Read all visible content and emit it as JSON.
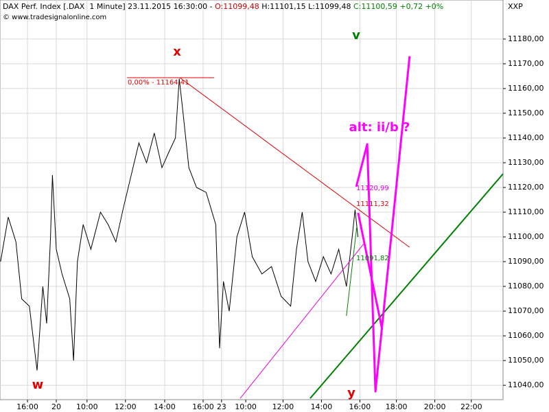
{
  "chart_data": {
    "type": "line",
    "title": "DAX Perf. Index [.DAX  1 Minute] 23.11.2015 16:30:00 -",
    "ohlc": [
      "O:11099,48",
      "H:11101,15",
      "L:11099,48"
    ],
    "change": [
      "C:11100,59",
      "+0,72",
      "+0%"
    ],
    "watermark": "© www.tradesignalonline.com",
    "y_axis_label": "XXP",
    "xlim": [
      -1.43,
      24.75
    ],
    "ylim": [
      11034.2,
      11195.8
    ],
    "grid": true,
    "xticks": [
      {
        "value": 0,
        "label": "16:00"
      },
      {
        "value": 1.5,
        "label": "20"
      },
      {
        "value": 3.1,
        "label": "10:00"
      },
      {
        "value": 5.1,
        "label": "12:00"
      },
      {
        "value": 7.14,
        "label": "14:00"
      },
      {
        "value": 9.14,
        "label": "16:00"
      },
      {
        "value": 10.1,
        "label": "23"
      },
      {
        "value": 11.36,
        "label": "10:00"
      },
      {
        "value": 13.3,
        "label": "12:00"
      },
      {
        "value": 15.3,
        "label": "14:00"
      },
      {
        "value": 17.3,
        "label": "16:00"
      },
      {
        "value": 19.2,
        "label": "18:00"
      },
      {
        "value": 21.2,
        "label": "20:00"
      },
      {
        "value": 23.1,
        "label": "22:00"
      }
    ],
    "yticks": [
      {
        "value": 11040,
        "label": "11040,00"
      },
      {
        "value": 11050,
        "label": "11050,00"
      },
      {
        "value": 11060,
        "label": "11060,00"
      },
      {
        "value": 11070,
        "label": "11070,00"
      },
      {
        "value": 11080,
        "label": "11080,00"
      },
      {
        "value": 11090,
        "label": "11090,00"
      },
      {
        "value": 11100,
        "label": "11100,00"
      },
      {
        "value": 11110,
        "label": "11110,00"
      },
      {
        "value": 11120,
        "label": "11120,00"
      },
      {
        "value": 11130,
        "label": "11130,00"
      },
      {
        "value": 11140,
        "label": "11140,00"
      },
      {
        "value": 11150,
        "label": "11150,00"
      },
      {
        "value": 11160,
        "label": "11160,00"
      },
      {
        "value": 11170,
        "label": "11170,00"
      },
      {
        "value": 11180,
        "label": "11180,00"
      }
    ],
    "series": [
      {
        "name": "DAX Perf. Index",
        "color": "#000000",
        "x": [
          -1.4,
          -1.0,
          -0.6,
          -0.3,
          0.1,
          0.5,
          0.8,
          1.0,
          1.2,
          1.3,
          1.5,
          1.8,
          2.2,
          2.4,
          2.6,
          2.9,
          3.3,
          3.8,
          4.2,
          4.6,
          5.0,
          5.4,
          5.8,
          6.2,
          6.6,
          7.0,
          7.4,
          7.7,
          7.9,
          8.1,
          8.4,
          8.8,
          9.3,
          9.8,
          10.0,
          10.2,
          10.5,
          10.9,
          11.3,
          11.7,
          12.2,
          12.7,
          13.2,
          13.7,
          14.0,
          14.3,
          14.6,
          15.0,
          15.4,
          15.8,
          16.2,
          16.6,
          16.9,
          17.05,
          17.2
        ],
        "values": [
          11090,
          11108,
          11098,
          11075,
          11072,
          11046,
          11080,
          11065,
          11100,
          11125,
          11095,
          11085,
          11075,
          11050,
          11090,
          11105,
          11095,
          11110,
          11105,
          11098,
          11112,
          11125,
          11138,
          11130,
          11142,
          11128,
          11135,
          11140,
          11164,
          11150,
          11128,
          11120,
          11118,
          11105,
          11055,
          11082,
          11070,
          11100,
          11110,
          11092,
          11085,
          11088,
          11076,
          11072,
          11095,
          11110,
          11090,
          11082,
          11092,
          11085,
          11095,
          11080,
          11100,
          11111,
          11100
        ]
      }
    ],
    "drawings": [
      {
        "color": "#e00000",
        "width": 1,
        "x": [
          7.93,
          19.89
        ],
        "values": [
          11164.41,
          11095.8
        ]
      },
      {
        "color": "#e00000",
        "width": 1,
        "x": [
          5.18,
          9.71
        ],
        "values": [
          11164.41,
          11164.41
        ]
      },
      {
        "color": "#e000e0",
        "width": 1,
        "x": [
          11.07,
          17.5
        ],
        "values": [
          11034.7,
          11097.2
        ]
      },
      {
        "color": "#008000",
        "width": 2,
        "x": [
          14.71,
          24.75
        ],
        "values": [
          11034.7,
          11125.5
        ]
      },
      {
        "color": "#008000",
        "width": 1,
        "x": [
          16.6,
          17.14
        ],
        "values": [
          11068.1,
          11104.2
        ]
      },
      {
        "color": "#ff00ff",
        "width": 3,
        "x": [
          17.11,
          17.68,
          18.11,
          19.89
        ],
        "values": [
          11120.3,
          11137.5,
          11037.5,
          11173.1
        ]
      },
      {
        "color": "#ff00ff",
        "width": 3,
        "x": [
          17.21,
          18.46
        ],
        "values": [
          11109.7,
          11062.5
        ]
      }
    ],
    "annotations": [
      {
        "text": "w",
        "color": "#e00000"
      },
      {
        "text": "x",
        "color": "#e00000"
      },
      {
        "text": "y",
        "color": "#e00000"
      },
      {
        "text": "v",
        "color": "#008000"
      },
      {
        "text": "alt: ii/b ?",
        "color": "#ff00ff"
      },
      {
        "text": "0,00% - 11164,41",
        "color": "#e00000"
      },
      {
        "text": "11120,99",
        "color": "#e000e0"
      },
      {
        "text": "11111,32",
        "color": "#e00000"
      },
      {
        "text": "11091,82",
        "color": "#008000"
      }
    ]
  }
}
